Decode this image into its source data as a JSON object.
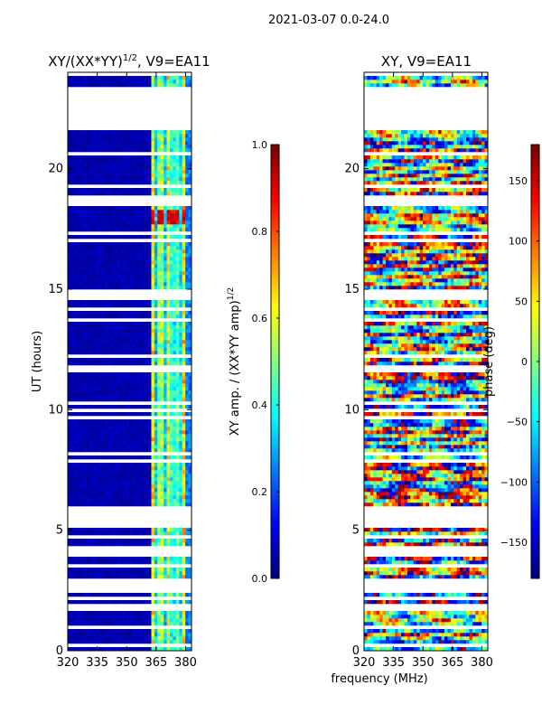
{
  "suptitle": "2021-03-07 0.0-24.0",
  "xlabel": "frequency (MHz)",
  "chart_data": [
    {
      "type": "heatmap",
      "title": "XY/(XX*YY)",
      "title_exponent": "1/2",
      "title_suffix": ", V9=EA11",
      "ylabel": "UT (hours)",
      "xlim": [
        320,
        383
      ],
      "ylim": [
        0,
        24
      ],
      "xticks": [
        320,
        335,
        350,
        365,
        380
      ],
      "yticks": [
        0,
        5,
        10,
        15,
        20
      ],
      "colorbar": {
        "label": "XY amp. / (XX*YY amp)",
        "label_exponent": "1/2",
        "range": [
          0.0,
          1.0
        ],
        "ticks": [
          "0.0",
          "0.2",
          "0.4",
          "0.6",
          "0.8",
          "1.0"
        ],
        "tick_values": [
          0.0,
          0.2,
          0.4,
          0.6,
          0.8,
          1.0
        ],
        "colormap": "jet"
      },
      "data_gaps_hours": [
        [
          21.6,
          23.4
        ],
        [
          18.5,
          18.9
        ],
        [
          14.5,
          15.0
        ],
        [
          13.6,
          13.8
        ],
        [
          11.6,
          11.8
        ],
        [
          5.7,
          6.0
        ],
        [
          2.6,
          2.9
        ],
        [
          1.8,
          2.0
        ]
      ],
      "bright_channels_MHz": [
        363.5,
        366.0,
        368.5,
        371.0,
        373.5,
        376.5,
        379.0
      ]
    },
    {
      "type": "heatmap",
      "title": "XY, V9=EA11",
      "xlim": [
        320,
        383
      ],
      "ylim": [
        0,
        24
      ],
      "xticks": [
        320,
        335,
        350,
        365,
        380
      ],
      "yticks": [
        0,
        5,
        10,
        15,
        20
      ],
      "colorbar": {
        "label": "phase (deg)",
        "range": [
          -180,
          180
        ],
        "ticks": [
          "−150",
          "−100",
          "−50",
          "0",
          "50",
          "100",
          "150"
        ],
        "tick_values": [
          -150,
          -100,
          -50,
          0,
          50,
          100,
          150
        ],
        "colormap": "jet"
      },
      "data_gaps_hours": [
        [
          21.6,
          23.4
        ],
        [
          18.5,
          18.9
        ],
        [
          14.5,
          15.0
        ],
        [
          13.6,
          13.8
        ],
        [
          11.6,
          11.8
        ],
        [
          5.7,
          6.0
        ],
        [
          2.6,
          2.9
        ],
        [
          1.8,
          2.0
        ]
      ]
    }
  ]
}
